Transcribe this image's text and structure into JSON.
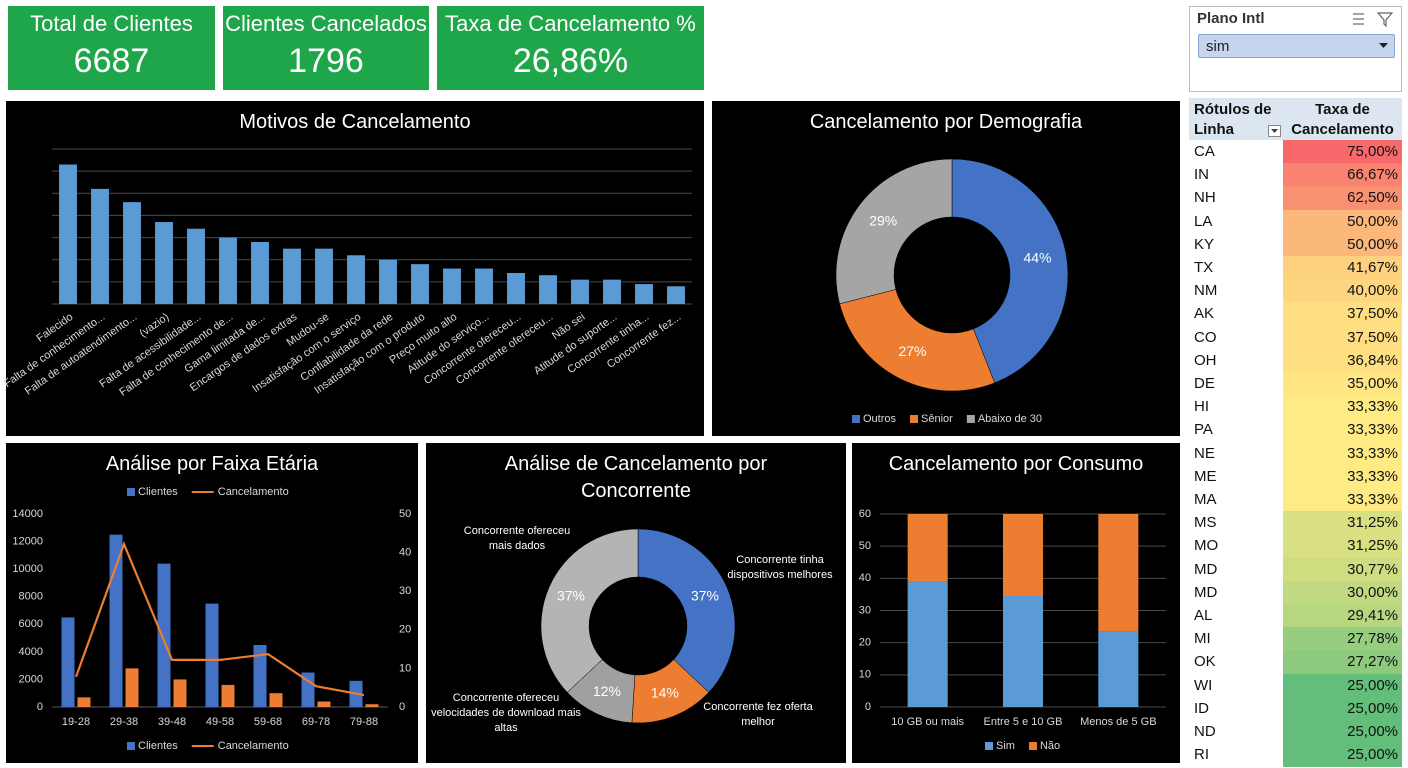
{
  "kpis": [
    {
      "label": "Total de Clientes",
      "value": "6687"
    },
    {
      "label": "Clientes Cancelados",
      "value": "1796"
    },
    {
      "label": "Taxa de Cancelamento %",
      "value": "26,86%"
    }
  ],
  "kpi_color": "#1fa64b",
  "slicer": {
    "title": "Plano Intl",
    "selected": "sim"
  },
  "table": {
    "headers": [
      "Rótulos de Linha",
      "Taxa de Cancelamento"
    ],
    "rows": [
      [
        "CA",
        "75,00%"
      ],
      [
        "IN",
        "66,67%"
      ],
      [
        "NH",
        "62,50%"
      ],
      [
        "LA",
        "50,00%"
      ],
      [
        "KY",
        "50,00%"
      ],
      [
        "TX",
        "41,67%"
      ],
      [
        "NM",
        "40,00%"
      ],
      [
        "AK",
        "37,50%"
      ],
      [
        "CO",
        "37,50%"
      ],
      [
        "OH",
        "36,84%"
      ],
      [
        "DE",
        "35,00%"
      ],
      [
        "HI",
        "33,33%"
      ],
      [
        "PA",
        "33,33%"
      ],
      [
        "NE",
        "33,33%"
      ],
      [
        "ME",
        "33,33%"
      ],
      [
        "MA",
        "33,33%"
      ],
      [
        "MS",
        "31,25%"
      ],
      [
        "MO",
        "31,25%"
      ],
      [
        "MD",
        "30,77%"
      ],
      [
        "MD",
        "30,00%"
      ],
      [
        "AL",
        "29,41%"
      ],
      [
        "MI",
        "27,78%"
      ],
      [
        "OK",
        "27,27%"
      ],
      [
        "WI",
        "25,00%"
      ],
      [
        "ID",
        "25,00%"
      ],
      [
        "ND",
        "25,00%"
      ],
      [
        "RI",
        "25,00%"
      ]
    ],
    "color_scale": [
      "#63be7b",
      "#ffeb84",
      "#f8696b"
    ]
  },
  "chart_data": [
    {
      "type": "bar",
      "title": "Motivos de Cancelamento",
      "categories": [
        "Falecido",
        "Falta de conhecimento...",
        "Falta de autoatendimento...",
        "(vazio)",
        "Falta de acessibilidade...",
        "Falta de conhecimento de...",
        "Gama limitada de...",
        "Encargos de dados extras",
        "Mudou-se",
        "Insatisfação com o serviço",
        "Confiabilidade da rede",
        "Insatisfação com o produto",
        "Preço muito alto",
        "Atitude do serviço...",
        "Concorrente ofereceu...",
        "Concorrente ofereceu...",
        "Não sei",
        "Atitude do suporte...",
        "Concorrente tinha...",
        "Concorrente fez..."
      ],
      "values": [
        6.3,
        5.2,
        4.6,
        3.7,
        3.4,
        3.0,
        2.8,
        2.5,
        2.5,
        2.2,
        2.0,
        1.8,
        1.6,
        1.6,
        1.4,
        1.3,
        1.1,
        1.1,
        0.9,
        0.8
      ],
      "color": "#5b9bd5",
      "ylim": [
        0,
        7
      ],
      "yticks": [
        0,
        1,
        2,
        3,
        4,
        5,
        6,
        7
      ],
      "grid": true,
      "ytick_labels": false
    },
    {
      "type": "donut",
      "title": "Cancelamento por Demografia",
      "categories": [
        "Outros",
        "Sênior",
        "Abaixo de 30"
      ],
      "values": [
        44,
        27,
        29
      ],
      "value_labels": [
        "44%",
        "27%",
        "29%"
      ],
      "colors": [
        "#4472c4",
        "#ed7d31",
        "#a5a5a5"
      ],
      "legend": "bottom"
    },
    {
      "type": "combo",
      "title": "Análise por Faixa Etária",
      "categories": [
        "19-28",
        "29-38",
        "39-48",
        "49-58",
        "59-68",
        "69-78",
        "79-88"
      ],
      "series": [
        {
          "name": "Clientes",
          "type": "bar",
          "color": "#4472c4",
          "values": [
            6500,
            12500,
            10400,
            7500,
            4500,
            2500,
            1900
          ]
        },
        {
          "name": "Cancelamento",
          "type": "line",
          "axis": "y2",
          "color": "#ed7d31",
          "values": [
            7.8,
            42.2,
            12.2,
            12.2,
            13.7,
            5.4,
            3.1
          ]
        },
        {
          "type": "bar",
          "color": "#ed7d31",
          "values": [
            700,
            2800,
            2000,
            1600,
            1000,
            400,
            200
          ]
        }
      ],
      "ylim": [
        0,
        14000
      ],
      "yticks": [
        0,
        2000,
        4000,
        6000,
        8000,
        10000,
        12000,
        14000
      ],
      "y2lim": [
        0,
        50
      ],
      "y2ticks": [
        0,
        10,
        20,
        30,
        40,
        50
      ],
      "grid": false,
      "legend": [
        "top",
        "bottom"
      ]
    },
    {
      "type": "donut",
      "title": "Análise de Cancelamento por Concorrente",
      "categories": [
        "Concorrente tinha dispositivos melhores",
        "Concorrente fez oferta melhor",
        "Concorrente ofereceu velocidades de download mais altas",
        "Concorrente ofereceu mais dados"
      ],
      "values": [
        37,
        14,
        12,
        37
      ],
      "value_labels": [
        "37%",
        "14%",
        "12%",
        "37%"
      ],
      "colors": [
        "#4472c4",
        "#ed7d31",
        "#a0a0a0",
        "#b4b4b4"
      ],
      "legend": "labels"
    },
    {
      "type": "stacked_bar",
      "title": "Cancelamento por Consumo",
      "categories": [
        "10 GB ou mais",
        "Entre 5 e 10 GB",
        "Menos de 5 GB"
      ],
      "series": [
        {
          "name": "Sim",
          "color": "#5b9bd5",
          "values": [
            39,
            34.5,
            23.5
          ]
        },
        {
          "name": "Não",
          "color": "#ed7d31",
          "values": [
            21,
            25.5,
            36.5
          ]
        }
      ],
      "ylim": [
        0,
        60
      ],
      "yticks": [
        0,
        10,
        20,
        30,
        40,
        50,
        60
      ],
      "grid": true,
      "legend": "bottom"
    }
  ]
}
